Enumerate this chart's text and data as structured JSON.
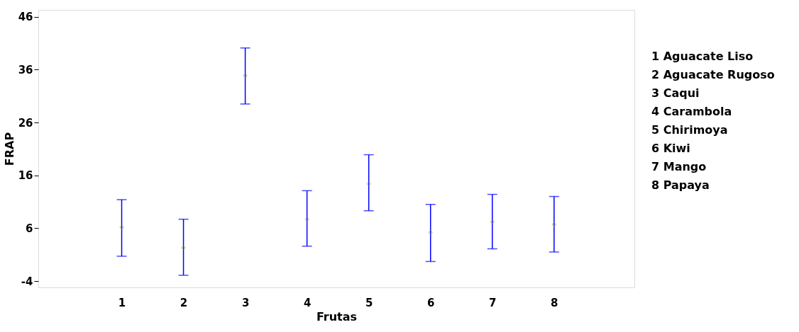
{
  "chart_data": {
    "type": "scatter",
    "xlabel": "Frutas",
    "ylabel": "FRAP",
    "categories": [
      "1",
      "2",
      "3",
      "4",
      "5",
      "6",
      "7",
      "8"
    ],
    "values": [
      6.2,
      2.3,
      34.9,
      7.7,
      14.4,
      5.2,
      7.2,
      6.7
    ],
    "errors": [
      [
        0.7,
        11.4
      ],
      [
        -2.9,
        7.7
      ],
      [
        29.5,
        40.1
      ],
      [
        2.6,
        13.1
      ],
      [
        9.3,
        19.9
      ],
      [
        -0.3,
        10.5
      ],
      [
        2.1,
        12.4
      ],
      [
        1.5,
        12.0
      ]
    ],
    "color": "#8b8b3a",
    "marker": "diamond",
    "ylim": [
      -5.2,
      47.3
    ],
    "yticks": [
      -4,
      6,
      16,
      26,
      36,
      46
    ],
    "grid": false,
    "annotations": [
      "1 Aguacate Liso",
      "2 Aguacate Rugoso",
      "3 Caqui",
      "4 Carambola",
      "5 Chirimoya",
      "6 Kiwi",
      "7 Mango",
      "8 Papaya"
    ]
  }
}
